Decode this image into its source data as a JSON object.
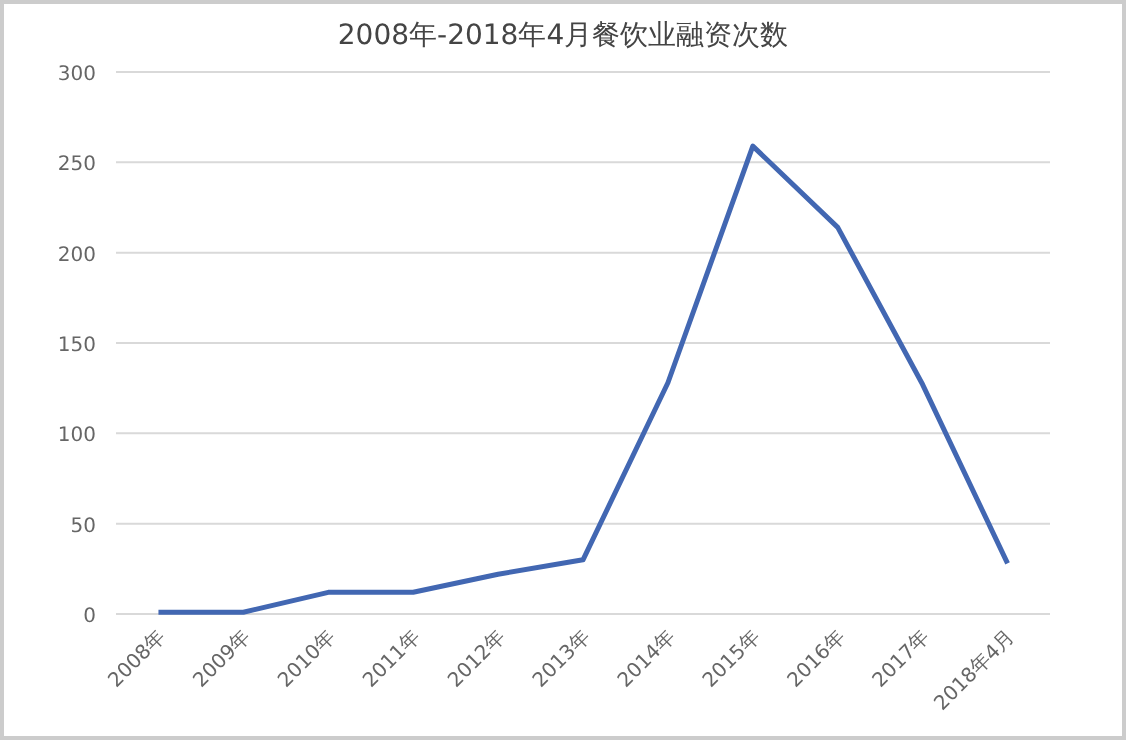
{
  "chart_data": {
    "type": "line",
    "title": "2008年-2018年4月餐饮业融资次数",
    "categories": [
      "2008年",
      "2009年",
      "2010年",
      "2011年",
      "2012年",
      "2013年",
      "2014年",
      "2015年",
      "2016年",
      "2017年",
      "2018年4月"
    ],
    "series": [
      {
        "color": "#4267b2",
        "values": [
          1,
          1,
          12,
          12,
          22,
          30,
          128,
          259,
          214,
          127,
          28
        ]
      }
    ],
    "ylim": [
      0,
      300
    ],
    "yticks": [
      0,
      50,
      100,
      150,
      200,
      250,
      300
    ],
    "grid": "y",
    "marker": "none",
    "line_style": "solid"
  }
}
